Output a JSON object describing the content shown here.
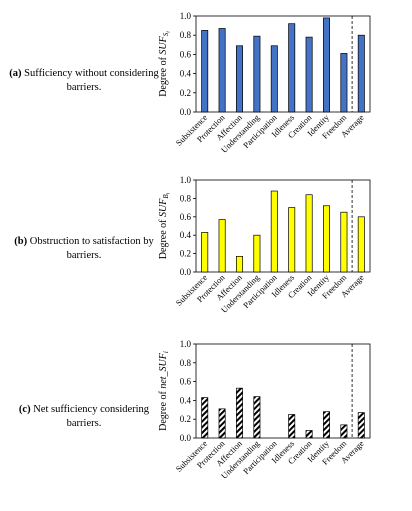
{
  "categories": [
    "Subsistence",
    "Protection",
    "Affection",
    "Understanding",
    "Participation",
    "Idleness",
    "Creation",
    "Identity",
    "Freedom",
    "Average"
  ],
  "chart_data": [
    {
      "type": "bar",
      "caption_letter": "(a)",
      "caption_text": "Sufficiency without considering barriers.",
      "ylabel": "Degree of SUF_Sᵢ",
      "ylabel_prefix": "Degree of ",
      "ylabel_var": "SUF",
      "ylabel_sub": "S",
      "ylabel_subsub": "i",
      "ylim": [
        0,
        1.0
      ],
      "yticks": [
        "0.0",
        "0.2",
        "0.4",
        "0.6",
        "0.8",
        "1.0"
      ],
      "fill": "#4472c4",
      "pattern": "solid",
      "values": [
        0.85,
        0.87,
        0.69,
        0.79,
        0.69,
        0.92,
        0.78,
        0.98,
        0.61,
        0.8
      ]
    },
    {
      "type": "bar",
      "caption_letter": "(b)",
      "caption_text": "Obstruction to satisfaction by barriers.",
      "ylabel": "Degree of SUF_B_i",
      "ylabel_prefix": "Degree of ",
      "ylabel_var": "SUF",
      "ylabel_sub": "B",
      "ylabel_subsub": "i",
      "ylim": [
        0,
        1.0
      ],
      "yticks": [
        "0.0",
        "0.2",
        "0.4",
        "0.6",
        "0.8",
        "1.0"
      ],
      "fill": "#ffff00",
      "pattern": "solid",
      "values": [
        0.43,
        0.57,
        0.17,
        0.4,
        0.88,
        0.7,
        0.84,
        0.72,
        0.65,
        0.6
      ]
    },
    {
      "type": "bar",
      "caption_letter": "(c)",
      "caption_text": "Net sufficiency considering barriers.",
      "ylabel": "Degree of net_SUF_i",
      "ylabel_prefix": "Degree of ",
      "ylabel_var": "net_SUF",
      "ylabel_sub": "i",
      "ylabel_subsub": "",
      "ylim": [
        0,
        1.0
      ],
      "yticks": [
        "0.0",
        "0.2",
        "0.4",
        "0.6",
        "0.8",
        "1.0"
      ],
      "fill": "#000000",
      "pattern": "hatch",
      "values": [
        0.43,
        0.31,
        0.53,
        0.44,
        0.0,
        0.25,
        0.08,
        0.28,
        0.14,
        0.27
      ]
    }
  ]
}
